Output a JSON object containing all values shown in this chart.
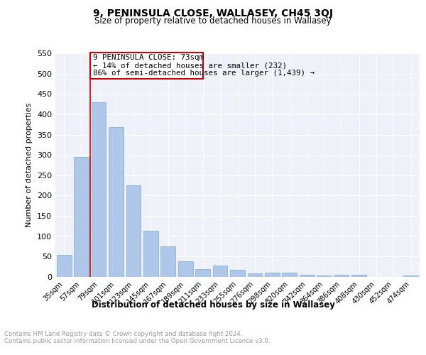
{
  "title": "9, PENINSULA CLOSE, WALLASEY, CH45 3QJ",
  "subtitle": "Size of property relative to detached houses in Wallasey",
  "xlabel": "Distribution of detached houses by size in Wallasey",
  "ylabel": "Number of detached properties",
  "categories": [
    "35sqm",
    "57sqm",
    "79sqm",
    "101sqm",
    "123sqm",
    "145sqm",
    "167sqm",
    "189sqm",
    "211sqm",
    "233sqm",
    "255sqm",
    "276sqm",
    "298sqm",
    "320sqm",
    "342sqm",
    "364sqm",
    "386sqm",
    "408sqm",
    "430sqm",
    "452sqm",
    "474sqm"
  ],
  "values": [
    55,
    295,
    430,
    368,
    225,
    113,
    75,
    38,
    20,
    28,
    18,
    8,
    10,
    10,
    5,
    3,
    5,
    6,
    0,
    0,
    4
  ],
  "bar_color": "#aec6e8",
  "bar_edge_color": "#7aaad0",
  "red_line_index": 2,
  "red_line_label": "9 PENINSULA CLOSE: 73sqm",
  "annotation_line1": "← 14% of detached houses are smaller (232)",
  "annotation_line2": "86% of semi-detached houses are larger (1,439) →",
  "ylim": [
    0,
    550
  ],
  "yticks": [
    0,
    50,
    100,
    150,
    200,
    250,
    300,
    350,
    400,
    450,
    500,
    550
  ],
  "bg_color": "#eef2f8",
  "grid_color": "#ffffff",
  "footer_line1": "Contains HM Land Registry data © Crown copyright and database right 2024.",
  "footer_line2": "Contains public sector information licensed under the Open Government Licence v3.0."
}
